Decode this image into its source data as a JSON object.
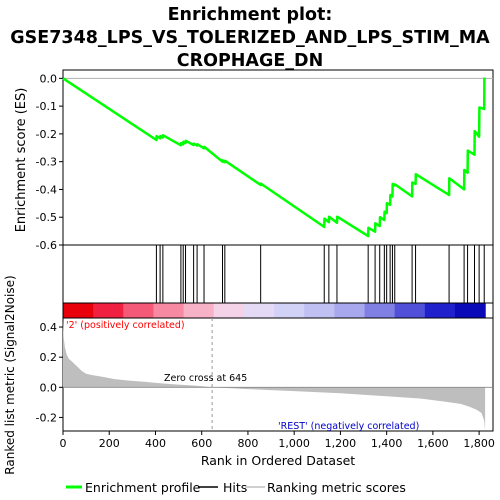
{
  "chart_data": {
    "type": "line",
    "title": "Enrichment plot: GSE7348_LPS_VS_TOLERIZED_AND_LPS_STIM_MACROPHAGE_DN",
    "title_lines": [
      "Enrichment plot:",
      "GSE7348_LPS_VS_TOLERIZED_AND_LPS_STIM_MA",
      "CROPHAGE_DN"
    ],
    "ylabel_top": "Enrichment score (ES)",
    "ylabel_bottom": "Ranked list metric (Signal2Noise)",
    "xlabel": "Rank in Ordered Dataset",
    "xlim": [
      0,
      1860
    ],
    "es_ylim": [
      -0.6,
      0.03
    ],
    "metric_ylim": [
      -0.29,
      0.46
    ],
    "x_ticks": [
      0,
      200,
      400,
      600,
      800,
      1000,
      1200,
      1400,
      1600,
      1800
    ],
    "x_tick_labels": [
      "0",
      "200",
      "400",
      "600",
      "800",
      "1,000",
      "1,200",
      "1,400",
      "1,600",
      "1,800"
    ],
    "es_y_ticks": [
      0.0,
      -0.1,
      -0.2,
      -0.3,
      -0.4,
      -0.5,
      -0.6
    ],
    "es_y_tick_labels": [
      "0.0",
      "-0.1",
      "-0.2",
      "-0.3",
      "-0.4",
      "-0.5",
      "-0.6"
    ],
    "metric_y_ticks": [
      0.4,
      0.2,
      0.0,
      -0.2
    ],
    "metric_y_tick_labels": [
      "0.4",
      "0.2",
      "0.0",
      "-0.2"
    ],
    "hits": [
      404,
      420,
      432,
      510,
      520,
      530,
      565,
      580,
      610,
      690,
      700,
      855,
      1130,
      1150,
      1185,
      1320,
      1350,
      1370,
      1390,
      1400,
      1415,
      1425,
      1435,
      1510,
      1525,
      1670,
      1735,
      1750,
      1780,
      1800,
      1822
    ],
    "enrichment_profile": {
      "x": [
        0,
        404,
        405,
        420,
        421,
        432,
        433,
        510,
        511,
        520,
        521,
        530,
        531,
        565,
        566,
        580,
        581,
        610,
        611,
        690,
        691,
        700,
        701,
        855,
        856,
        1130,
        1131,
        1150,
        1151,
        1185,
        1186,
        1320,
        1321,
        1350,
        1351,
        1370,
        1371,
        1390,
        1391,
        1400,
        1401,
        1415,
        1416,
        1425,
        1426,
        1435,
        1436,
        1510,
        1511,
        1525,
        1526,
        1670,
        1671,
        1735,
        1736,
        1750,
        1751,
        1780,
        1781,
        1800,
        1801,
        1822,
        1823
      ],
      "y": [
        0.0,
        -0.222,
        -0.208,
        -0.216,
        -0.208,
        -0.213,
        -0.205,
        -0.241,
        -0.233,
        -0.238,
        -0.228,
        -0.233,
        -0.225,
        -0.24,
        -0.235,
        -0.242,
        -0.237,
        -0.252,
        -0.247,
        -0.3,
        -0.295,
        -0.302,
        -0.297,
        -0.384,
        -0.379,
        -0.535,
        -0.505,
        -0.518,
        -0.498,
        -0.52,
        -0.498,
        -0.568,
        -0.538,
        -0.552,
        -0.522,
        -0.532,
        -0.5,
        -0.51,
        -0.48,
        -0.485,
        -0.45,
        -0.455,
        -0.42,
        -0.425,
        -0.38,
        -0.385,
        -0.382,
        -0.425,
        -0.375,
        -0.38,
        -0.345,
        -0.42,
        -0.36,
        -0.4,
        -0.33,
        -0.34,
        -0.26,
        -0.275,
        -0.19,
        -0.21,
        -0.105,
        -0.11,
        0.003
      ]
    },
    "ranking_metric": {
      "x": [
        0,
        3,
        8,
        15,
        25,
        40,
        60,
        80,
        100,
        130,
        170,
        220,
        280,
        350,
        420,
        500,
        580,
        645,
        800,
        1000,
        1200,
        1400,
        1550,
        1650,
        1720,
        1760,
        1790,
        1810,
        1822,
        1826
      ],
      "y": [
        0.45,
        0.33,
        0.27,
        0.22,
        0.19,
        0.17,
        0.14,
        0.11,
        0.09,
        0.08,
        0.07,
        0.055,
        0.045,
        0.037,
        0.027,
        0.018,
        0.01,
        0.0,
        -0.012,
        -0.025,
        -0.04,
        -0.06,
        -0.075,
        -0.095,
        -0.11,
        -0.13,
        -0.15,
        -0.17,
        -0.22,
        -0.29
      ]
    },
    "zero_cross_x": 645,
    "annotations": {
      "positive_label": "'2' (positively correlated)",
      "negative_label": "'REST' (negatively correlated)",
      "zero_cross_label": "Zero cross at 645"
    },
    "legend": {
      "placement": "bottom",
      "entries": [
        {
          "label": "Enrichment profile",
          "color": "#00ff00"
        },
        {
          "label": "Hits",
          "color": "#000000"
        },
        {
          "label": "Ranking metric scores",
          "color": "#c0c0c0"
        }
      ]
    },
    "colors": {
      "es_line": "#00ff00",
      "hit": "#000000",
      "metric_fill": "#bebebe",
      "positive_text": "#ff0000",
      "negative_text": "#0000cc",
      "heat": [
        "#e8000a",
        "#f02040",
        "#f45a78",
        "#f78aa2",
        "#f8b2c8",
        "#f4d2e8",
        "#e4daf6",
        "#d2d2f6",
        "#c0c0f2",
        "#a8a8ee",
        "#8080e4",
        "#5050d8",
        "#2020cc",
        "#0a0ab8"
      ]
    }
  }
}
